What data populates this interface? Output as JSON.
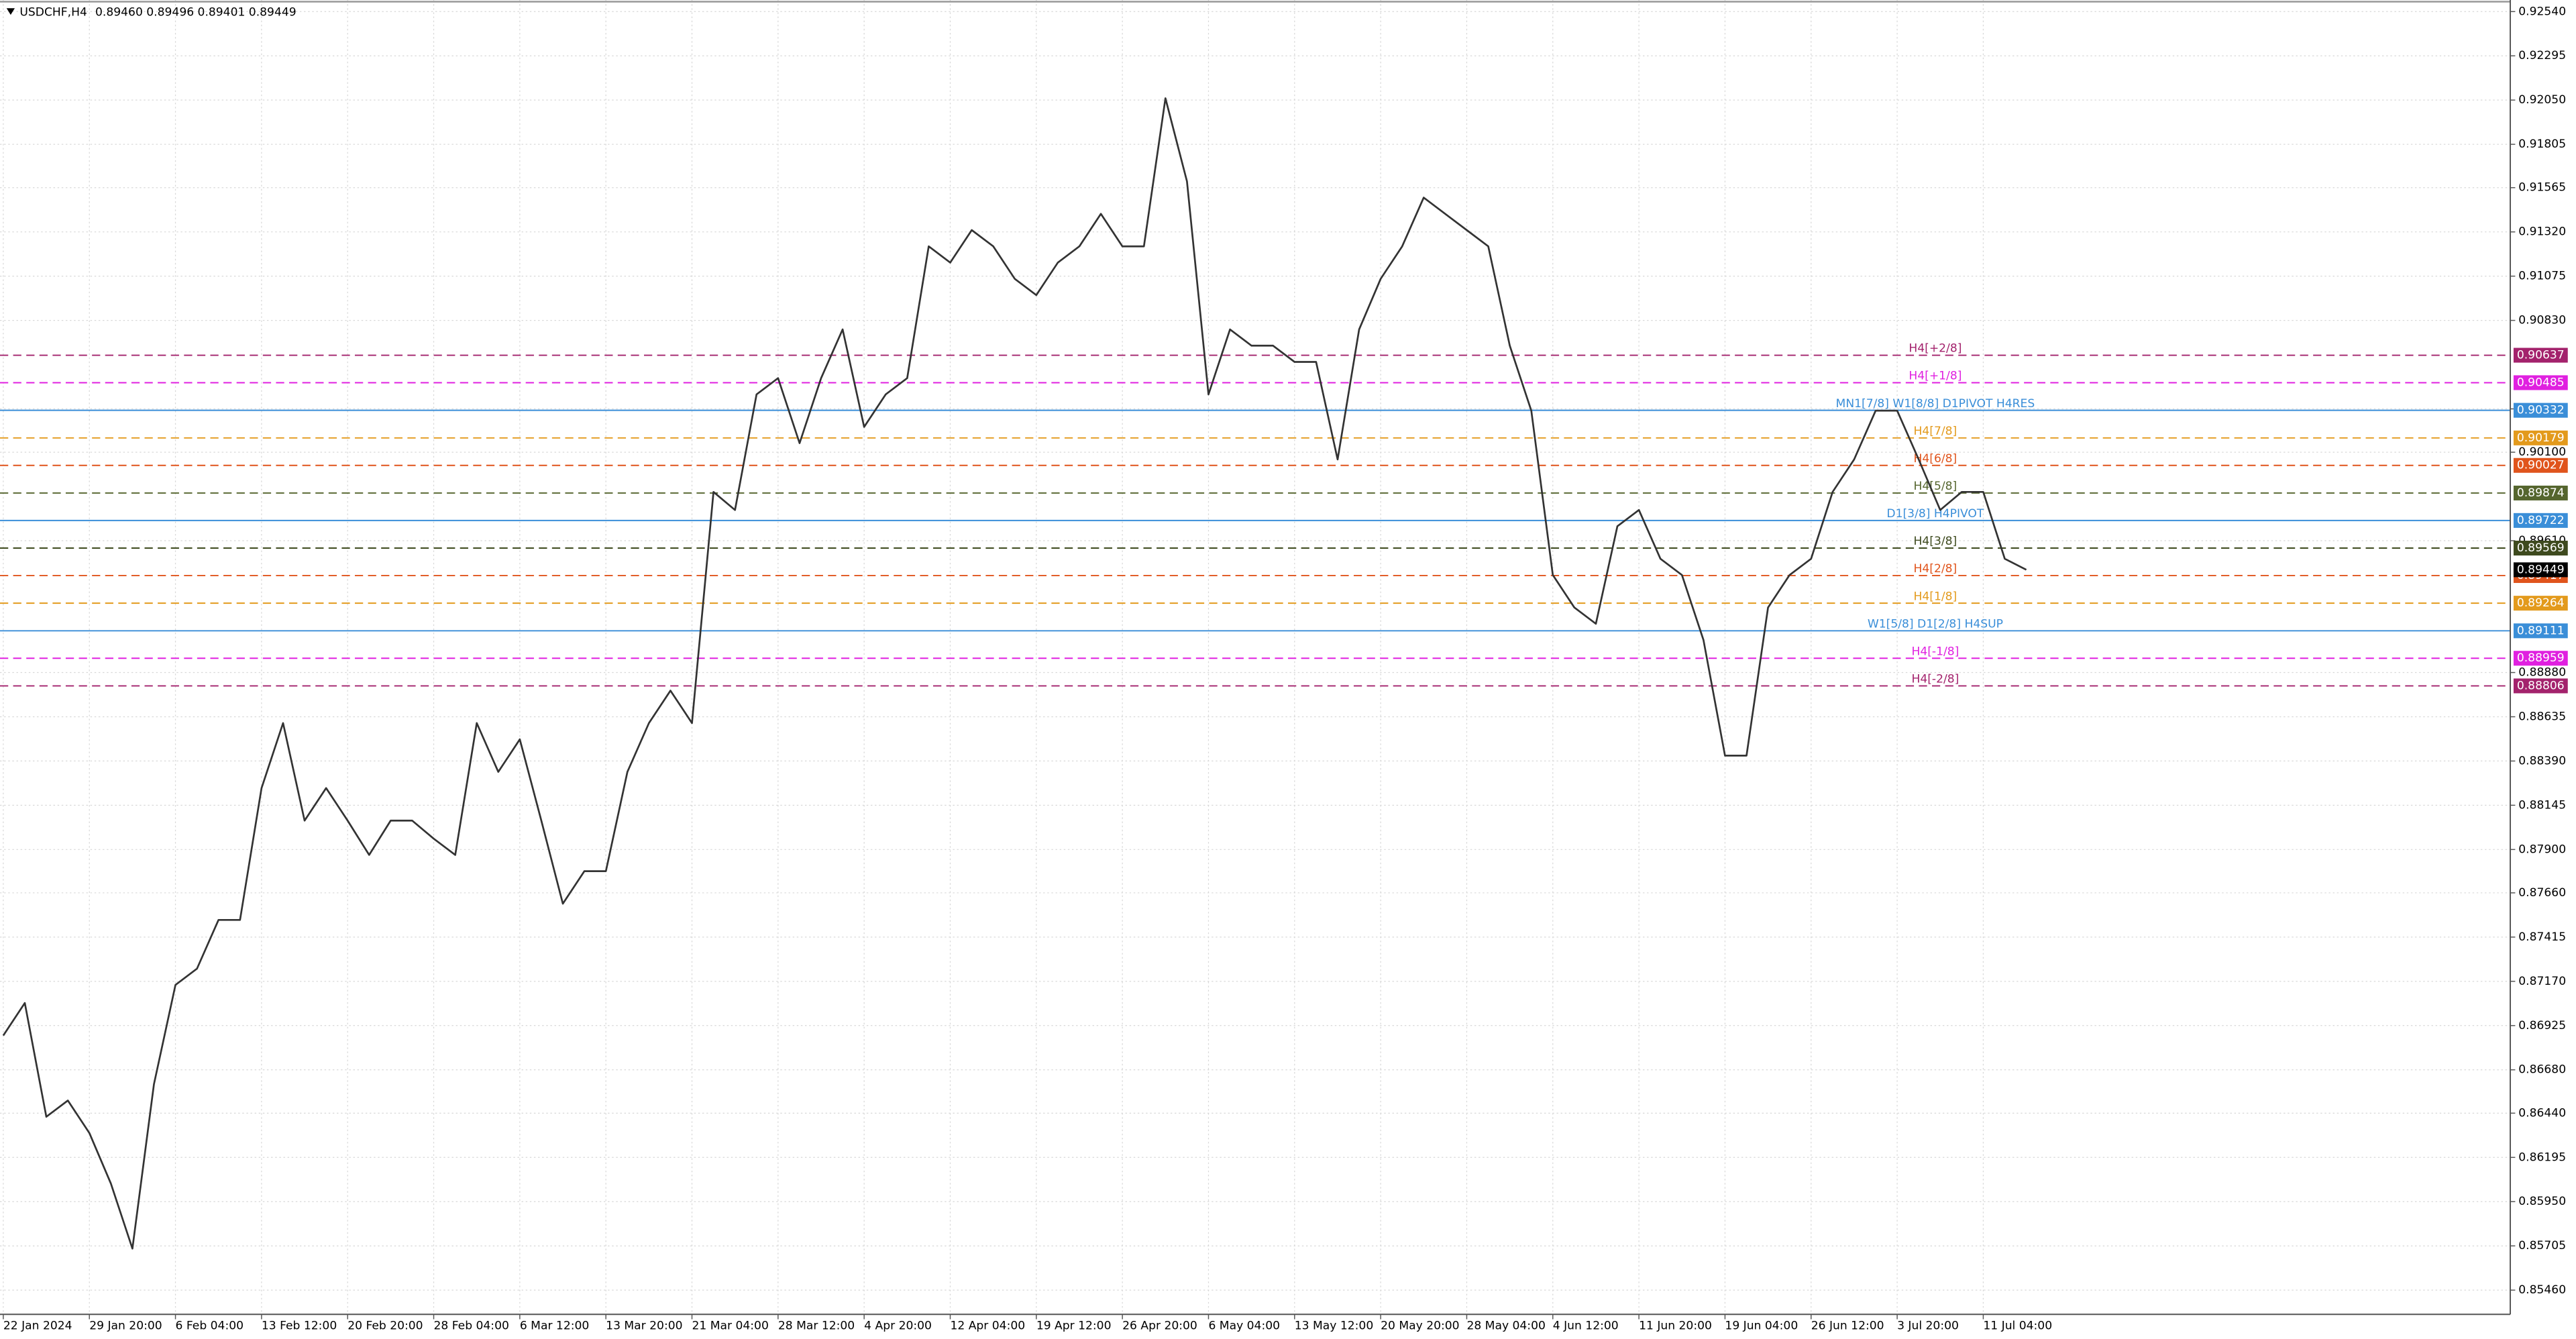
{
  "chart_data": {
    "type": "line",
    "title": "USDCHF,H4",
    "subtitle": "0.89460 0.89496 0.89401 0.89449",
    "categories": [
      "22 Jan 2024",
      null,
      null,
      null,
      "29 Jan 20:00",
      null,
      null,
      null,
      "6 Feb 04:00",
      null,
      null,
      null,
      "13 Feb 12:00",
      null,
      null,
      null,
      "20 Feb 20:00",
      null,
      null,
      null,
      "28 Feb 04:00",
      null,
      null,
      null,
      "6 Mar 12:00",
      null,
      null,
      null,
      "13 Mar 20:00",
      null,
      null,
      null,
      "21 Mar 04:00",
      null,
      null,
      null,
      "28 Mar 12:00",
      null,
      null,
      null,
      "4 Apr 20:00",
      null,
      null,
      null,
      "12 Apr 04:00",
      null,
      null,
      null,
      "19 Apr 12:00",
      null,
      null,
      null,
      "26 Apr 20:00",
      null,
      null,
      null,
      "6 May 04:00",
      null,
      null,
      null,
      "13 May 12:00",
      null,
      null,
      null,
      "20 May 20:00",
      null,
      null,
      null,
      "28 May 04:00",
      null,
      null,
      null,
      "4 Jun 12:00",
      null,
      null,
      null,
      "11 Jun 20:00",
      null,
      null,
      null,
      "19 Jun 04:00",
      null,
      null,
      null,
      "26 Jun 12:00",
      null,
      null,
      null,
      "3 Jul 20:00",
      null,
      null,
      null,
      "11 Jul 04:00",
      null,
      null
    ],
    "series": [
      {
        "name": "USDCHF,H4",
        "color": "#333333",
        "values": [
          0.8687,
          0.8705,
          0.8642,
          0.8651,
          0.8633,
          0.8605,
          0.8569,
          0.866,
          0.8715,
          0.8724,
          0.8751,
          0.8751,
          0.8824,
          0.886,
          0.8806,
          0.8824,
          0.8806,
          0.8787,
          0.8806,
          0.8806,
          0.8796,
          0.8787,
          0.886,
          0.8833,
          0.8851,
          0.8806,
          0.876,
          0.8778,
          0.8778,
          0.8833,
          0.886,
          0.8878,
          0.886,
          0.8988,
          0.8978,
          0.9042,
          0.9051,
          0.9015,
          0.9051,
          0.9078,
          0.9024,
          0.9042,
          0.9051,
          0.9124,
          0.9115,
          0.9133,
          0.9124,
          0.9106,
          0.9097,
          0.9115,
          0.9124,
          0.9142,
          0.9124,
          0.9124,
          0.9206,
          0.916,
          0.9042,
          0.9078,
          0.9069,
          0.9069,
          0.906,
          0.906,
          0.9006,
          0.9078,
          0.9106,
          0.9124,
          0.9151,
          0.9142,
          0.9133,
          0.9124,
          0.9069,
          0.9033,
          0.8942,
          0.8924,
          0.8915,
          0.8969,
          0.8978,
          0.8951,
          0.8942,
          0.8906,
          0.8842,
          0.8842,
          0.8924,
          0.8942,
          0.8951,
          0.8988,
          0.9006,
          0.9033,
          0.9033,
          0.9006,
          0.8978,
          0.8988,
          0.8988,
          0.8951,
          0.89449
        ]
      }
    ],
    "ylim": [
      0.85326,
      0.92604
    ],
    "yticks": [
      {
        "value": 0.9254,
        "label": "0.92540"
      },
      {
        "value": 0.92295,
        "label": "0.92295"
      },
      {
        "value": 0.9205,
        "label": "0.92050"
      },
      {
        "value": 0.91805,
        "label": "0.91805"
      },
      {
        "value": 0.91565,
        "label": "0.91565"
      },
      {
        "value": 0.9132,
        "label": "0.91320"
      },
      {
        "value": 0.91075,
        "label": "0.91075"
      },
      {
        "value": 0.9083,
        "label": "0.90830"
      },
      {
        "value": 0.9034,
        "label": "0.90340"
      },
      {
        "value": 0.901,
        "label": "0.90100"
      },
      {
        "value": 0.8961,
        "label": "0.89610"
      },
      {
        "value": 0.8888,
        "label": "0.88880"
      },
      {
        "value": 0.88635,
        "label": "0.88635"
      },
      {
        "value": 0.8839,
        "label": "0.88390"
      },
      {
        "value": 0.88145,
        "label": "0.88145"
      },
      {
        "value": 0.879,
        "label": "0.87900"
      },
      {
        "value": 0.8766,
        "label": "0.87660"
      },
      {
        "value": 0.87415,
        "label": "0.87415"
      },
      {
        "value": 0.8717,
        "label": "0.87170"
      },
      {
        "value": 0.86925,
        "label": "0.86925"
      },
      {
        "value": 0.8668,
        "label": "0.86680"
      },
      {
        "value": 0.8644,
        "label": "0.86440"
      },
      {
        "value": 0.86195,
        "label": "0.86195"
      },
      {
        "value": 0.8595,
        "label": "0.85950"
      },
      {
        "value": 0.85705,
        "label": "0.85705"
      },
      {
        "value": 0.8546,
        "label": "0.85460"
      }
    ],
    "grid": true,
    "levels": [
      {
        "name": "H4[+2/8]",
        "value": 0.90637,
        "color": "#a3226c",
        "style": "dashed"
      },
      {
        "name": "H4[+1/8]",
        "value": 0.90485,
        "color": "#e020e0",
        "style": "dashed"
      },
      {
        "name": "MN1[7/8] W1[8/8] D1PIVOT H4RES",
        "value": 0.90332,
        "color": "#3a8ed8",
        "style": "solid"
      },
      {
        "name": "H4[7/8]",
        "value": 0.90179,
        "color": "#e39a1c",
        "style": "dashed"
      },
      {
        "name": "H4[6/8]",
        "value": 0.90027,
        "color": "#e0541c",
        "style": "dashed"
      },
      {
        "name": "H4[5/8]",
        "value": 0.89874,
        "color": "#55652e",
        "style": "dashed"
      },
      {
        "name": "D1[3/8] H4PIVOT",
        "value": 0.89722,
        "color": "#3a8ed8",
        "style": "solid"
      },
      {
        "name": "H4[3/8]",
        "value": 0.89569,
        "color": "#3e4a1e",
        "style": "dashed"
      },
      {
        "name": "H4[2/8]",
        "value": 0.89417,
        "color": "#e0541c",
        "style": "dashed"
      },
      {
        "name": "H4[1/8]",
        "value": 0.89264,
        "color": "#e39a1c",
        "style": "dashed"
      },
      {
        "name": "W1[5/8] D1[2/8] H4SUP",
        "value": 0.89111,
        "color": "#3a8ed8",
        "style": "solid"
      },
      {
        "name": "H4[-1/8]",
        "value": 0.88959,
        "color": "#e020e0",
        "style": "dashed"
      },
      {
        "name": "H4[-2/8]",
        "value": 0.88806,
        "color": "#a3226c",
        "style": "dashed"
      }
    ]
  }
}
